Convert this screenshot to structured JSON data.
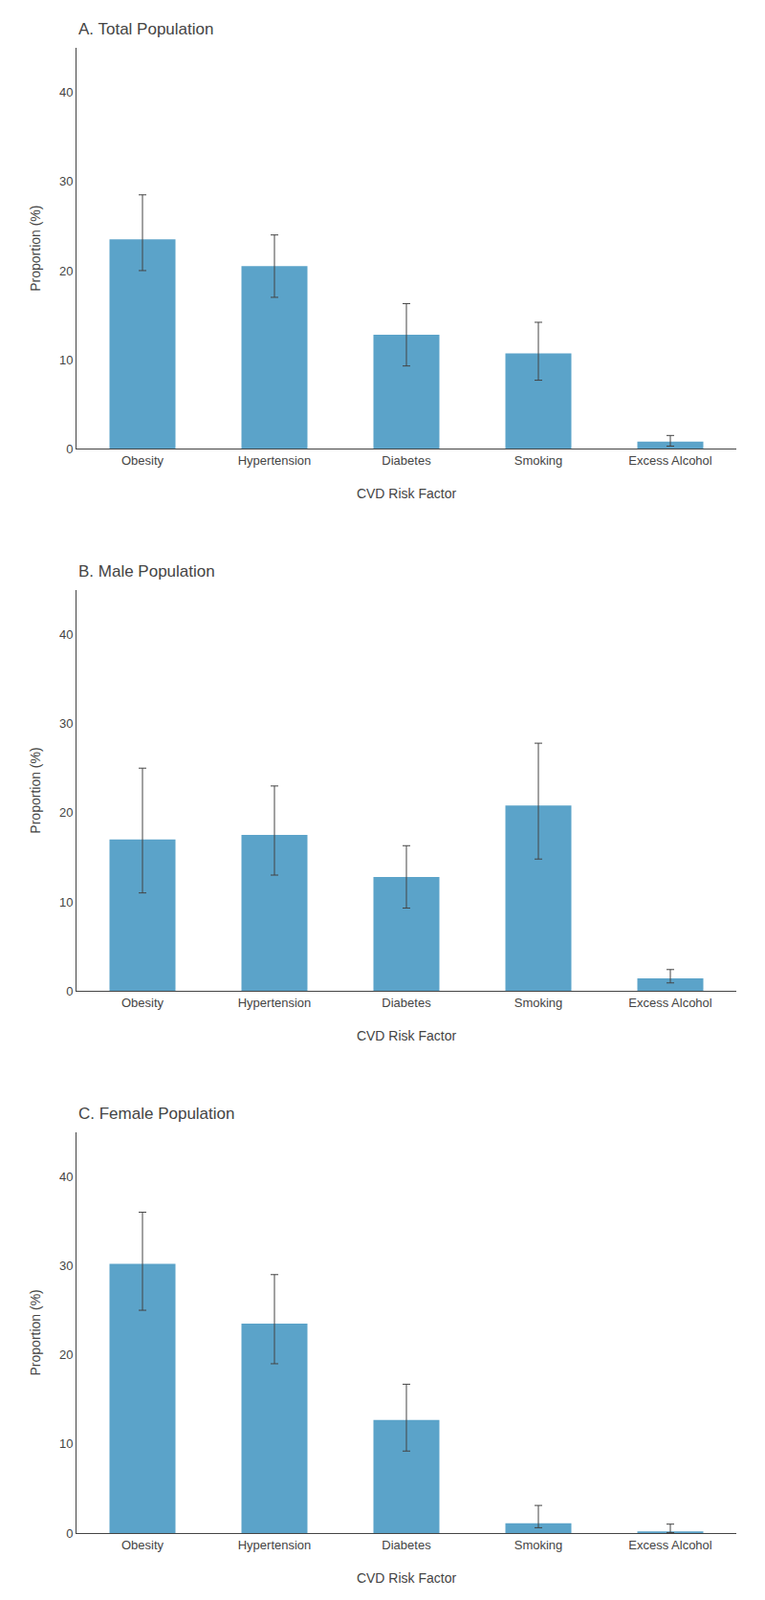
{
  "chart_data": [
    {
      "type": "bar",
      "title": "A. Total Population",
      "xlabel": "CVD Risk Factor",
      "ylabel": "Proportion (%)",
      "categories": [
        "Obesity",
        "Hypertension",
        "Diabetes",
        "Smoking",
        "Excess Alcohol"
      ],
      "values": [
        23.5,
        20.5,
        12.8,
        10.7,
        0.8
      ],
      "err_low": [
        3.5,
        3.5,
        3.5,
        3.0,
        0.5
      ],
      "err_high": [
        5.0,
        3.5,
        3.5,
        3.5,
        0.7
      ],
      "color": "#5ba3c9",
      "ylim": [
        0,
        45
      ],
      "yticks": [
        0,
        10,
        20,
        30,
        40
      ],
      "grid": false
    },
    {
      "type": "bar",
      "title": "B. Male Population",
      "xlabel": "CVD Risk Factor",
      "ylabel": "Proportion (%)",
      "categories": [
        "Obesity",
        "Hypertension",
        "Diabetes",
        "Smoking",
        "Excess Alcohol"
      ],
      "values": [
        17.0,
        17.5,
        12.8,
        20.8,
        1.4
      ],
      "err_low": [
        6.0,
        4.5,
        3.5,
        6.0,
        0.5
      ],
      "err_high": [
        8.0,
        5.5,
        3.5,
        7.0,
        1.0
      ],
      "color": "#5ba3c9",
      "ylim": [
        0,
        45
      ],
      "yticks": [
        0,
        10,
        20,
        30,
        40
      ],
      "grid": false
    },
    {
      "type": "bar",
      "title": "C. Female Population",
      "xlabel": "CVD Risk Factor",
      "ylabel": "Proportion (%)",
      "categories": [
        "Obesity",
        "Hypertension",
        "Diabetes",
        "Smoking",
        "Excess Alcohol"
      ],
      "values": [
        30.2,
        23.5,
        12.7,
        1.1,
        0.2
      ],
      "err_low": [
        5.2,
        4.5,
        3.5,
        0.5,
        0.15
      ],
      "err_high": [
        5.8,
        5.5,
        4.0,
        2.0,
        0.8
      ],
      "color": "#5ba3c9",
      "ylim": [
        0,
        45
      ],
      "yticks": [
        0,
        10,
        20,
        30,
        40
      ],
      "grid": false
    }
  ]
}
